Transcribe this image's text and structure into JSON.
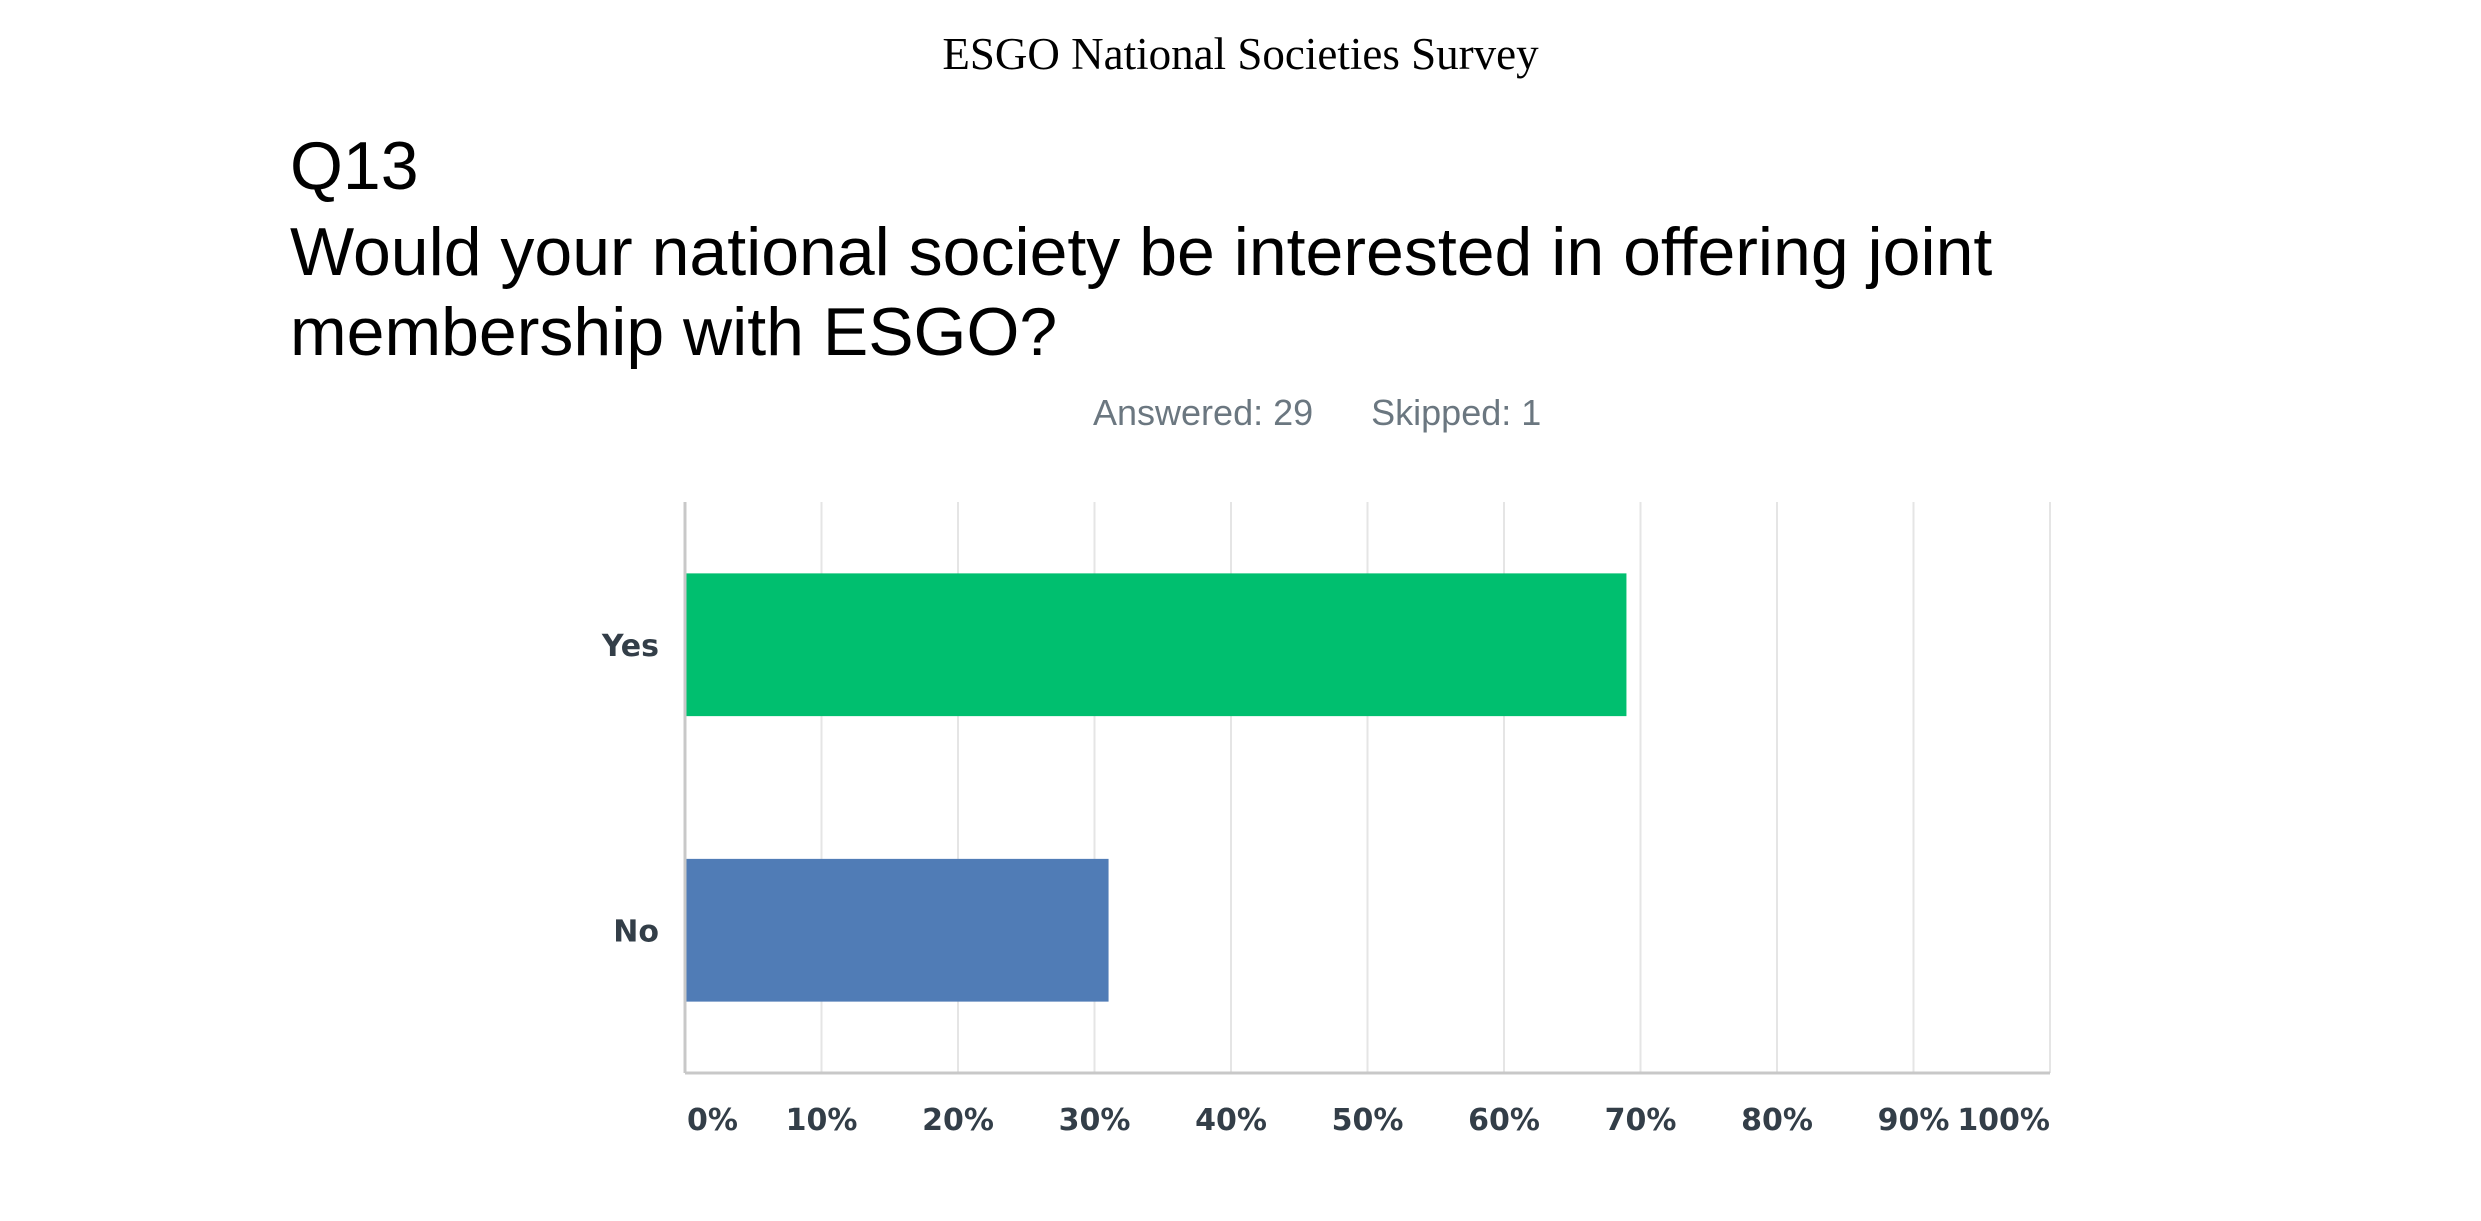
{
  "header": {
    "title": "ESGO National Societies Survey"
  },
  "question": {
    "number": "Q13",
    "text": "Would your national society be interested in offering joint membership with ESGO?"
  },
  "stats": {
    "answered": "Answered: 29",
    "skipped": "Skipped: 1"
  },
  "chart_data": {
    "type": "bar",
    "orientation": "horizontal",
    "categories": [
      "Yes",
      "No"
    ],
    "values": [
      68.97,
      31.03
    ],
    "unit": "%",
    "colors": [
      "#00bf6f",
      "#507cb6"
    ],
    "xlim": [
      0,
      100
    ],
    "xticks": [
      0,
      10,
      20,
      30,
      40,
      50,
      60,
      70,
      80,
      90,
      100
    ],
    "xtick_labels": [
      "0%",
      "10%",
      "20%",
      "30%",
      "40%",
      "50%",
      "60%",
      "70%",
      "80%",
      "90%",
      "100%"
    ],
    "grid": "vertical",
    "grid_color": "#e5e5e5",
    "axis_color": "#c8c8c8",
    "legend": "none"
  }
}
